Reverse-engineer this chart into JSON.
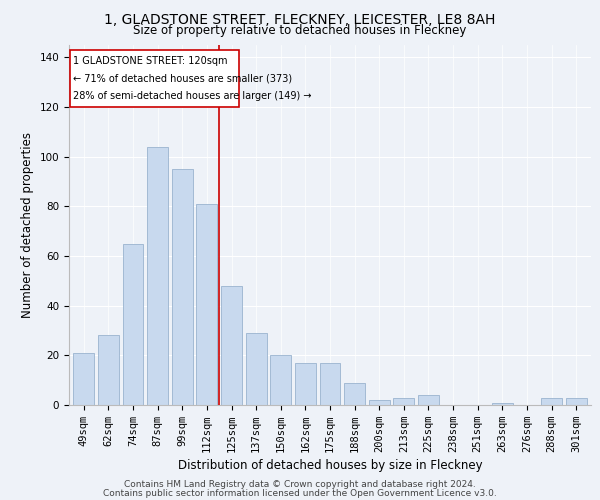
{
  "title": "1, GLADSTONE STREET, FLECKNEY, LEICESTER, LE8 8AH",
  "subtitle": "Size of property relative to detached houses in Fleckney",
  "xlabel": "Distribution of detached houses by size in Fleckney",
  "ylabel": "Number of detached properties",
  "categories": [
    "49sqm",
    "62sqm",
    "74sqm",
    "87sqm",
    "99sqm",
    "112sqm",
    "125sqm",
    "137sqm",
    "150sqm",
    "162sqm",
    "175sqm",
    "188sqm",
    "200sqm",
    "213sqm",
    "225sqm",
    "238sqm",
    "251sqm",
    "263sqm",
    "276sqm",
    "288sqm",
    "301sqm"
  ],
  "values": [
    21,
    28,
    65,
    104,
    95,
    81,
    48,
    29,
    20,
    17,
    17,
    9,
    2,
    3,
    4,
    0,
    0,
    1,
    0,
    3,
    3
  ],
  "bar_color": "#c8d9ee",
  "bar_edge_color": "#9ab3cf",
  "vline_x_index": 5.5,
  "vline_label": "1 GLADSTONE STREET: 120sqm",
  "annotation_line1": "← 71% of detached houses are smaller (373)",
  "annotation_line2": "28% of semi-detached houses are larger (149) →",
  "vline_color": "#cc0000",
  "box_color": "#cc0000",
  "footer1": "Contains HM Land Registry data © Crown copyright and database right 2024.",
  "footer2": "Contains public sector information licensed under the Open Government Licence v3.0.",
  "ylim": [
    0,
    145
  ],
  "yticks": [
    0,
    20,
    40,
    60,
    80,
    100,
    120,
    140
  ],
  "title_fontsize": 10,
  "subtitle_fontsize": 8.5,
  "axis_label_fontsize": 8.5,
  "tick_fontsize": 7.5,
  "footer_fontsize": 6.5,
  "background_color": "#eef2f8"
}
